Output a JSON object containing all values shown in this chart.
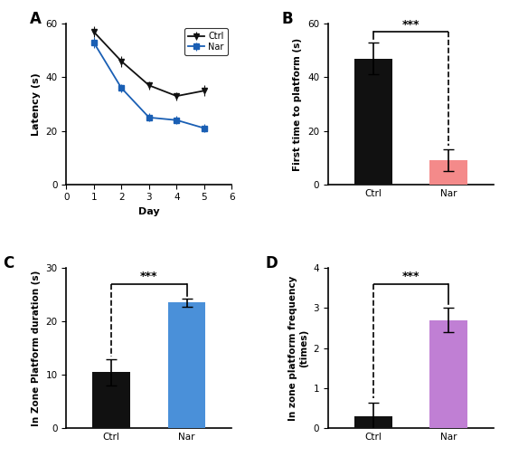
{
  "panel_A": {
    "ctrl_x": [
      1,
      2,
      3,
      4,
      5
    ],
    "ctrl_y": [
      57,
      46,
      37,
      33,
      35
    ],
    "nar_x": [
      1,
      2,
      3,
      4,
      5
    ],
    "nar_y": [
      53,
      36,
      25,
      24,
      21
    ],
    "ctrl_err": [
      2,
      2,
      1.5,
      1.5,
      2
    ],
    "nar_err": [
      2,
      1.5,
      1.5,
      1.5,
      1.5
    ],
    "xlabel": "Day",
    "ylabel": "Latency (s)",
    "xlim": [
      0,
      6
    ],
    "ylim": [
      0,
      60
    ],
    "yticks": [
      0,
      20,
      40,
      60
    ],
    "xticks": [
      0,
      1,
      2,
      3,
      4,
      5,
      6
    ],
    "ctrl_color": "#111111",
    "nar_color": "#1a5fb4",
    "legend_ctrl": "Ctrl",
    "legend_nar": "Nar",
    "label": "A"
  },
  "panel_B": {
    "categories": [
      "Ctrl",
      "Nar"
    ],
    "values": [
      47,
      9
    ],
    "errors": [
      6,
      4
    ],
    "colors": [
      "#111111",
      "#f48a8a"
    ],
    "ylabel": "First time to platform (s)",
    "ylim": [
      0,
      60
    ],
    "yticks": [
      0,
      20,
      40,
      60
    ],
    "sig_text": "***",
    "sig_y": 57,
    "label": "B"
  },
  "panel_C": {
    "categories": [
      "Ctrl",
      "Nar"
    ],
    "values": [
      10.5,
      23.5
    ],
    "errors": [
      2.5,
      0.8
    ],
    "colors": [
      "#111111",
      "#4a90d9"
    ],
    "ylabel": "In Zone Platform duration (s)",
    "ylim": [
      0,
      30
    ],
    "yticks": [
      0,
      10,
      20,
      30
    ],
    "sig_text": "***",
    "sig_y": 27,
    "label": "C"
  },
  "panel_D": {
    "categories": [
      "Ctrl",
      "Nar"
    ],
    "values": [
      0.3,
      2.7
    ],
    "errors": [
      0.35,
      0.3
    ],
    "colors": [
      "#111111",
      "#c07fd4"
    ],
    "ylabel": "In zone platform frequency\n(times)",
    "ylim": [
      0,
      4
    ],
    "yticks": [
      0,
      1,
      2,
      3,
      4
    ],
    "sig_text": "***",
    "sig_y": 3.6,
    "label": "D"
  }
}
